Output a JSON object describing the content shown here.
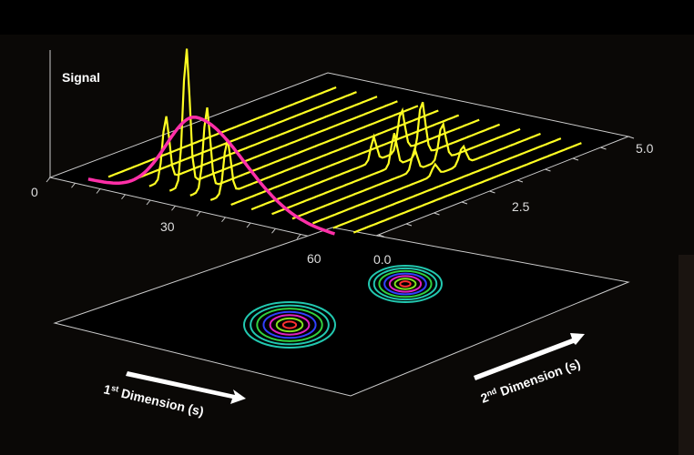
{
  "axis_labels": {
    "signal": "Signal"
  },
  "first_dimension": {
    "ticks": [
      "0",
      "30",
      "60"
    ],
    "label": "1",
    "label_sup": "st",
    "label_rest": " Dimension (s)"
  },
  "second_dimension": {
    "ticks": [
      "0.0",
      "2.5",
      "5.0"
    ],
    "label": "2",
    "label_sup": "nd",
    "label_rest": " Dimension (s)"
  }
}
